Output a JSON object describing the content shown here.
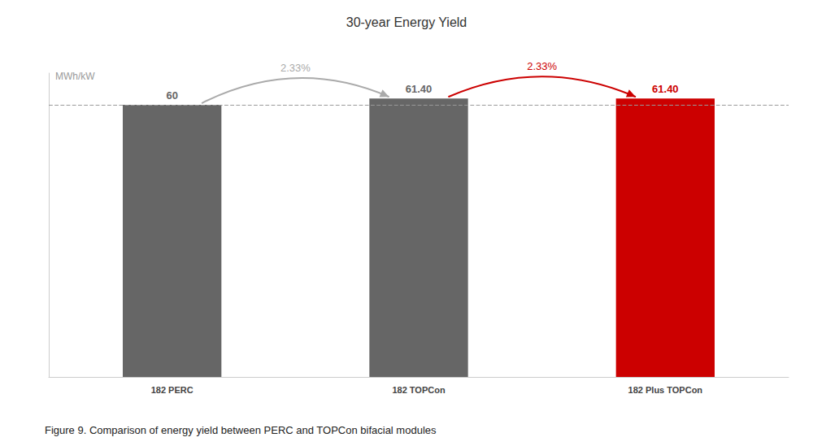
{
  "chart_data": {
    "type": "bar",
    "title": "30-year Energy Yield",
    "caption": "Figure 9. Comparison of energy yield between PERC and TOPCon bifacial modules",
    "categories": [
      "182 PERC",
      "182 TOPCon",
      "182 Plus TOPCon"
    ],
    "values": [
      60,
      61.4,
      61.4
    ],
    "value_labels": [
      "60",
      "61.40",
      "61.40"
    ],
    "colors": [
      "#666666",
      "#666666",
      "#cc0000"
    ],
    "data_labels": true,
    "ylabel": "MWh/kW",
    "ylim": [
      0,
      67
    ],
    "tick_labels": "x",
    "grid": false,
    "reference_line": {
      "value": 60,
      "color": "#999999",
      "line_style": "dashed"
    },
    "annotations": [
      {
        "text": "2.33%",
        "color": "#aaaaaa",
        "from": "182 PERC",
        "to": "182 TOPCon"
      },
      {
        "text": "2.33%",
        "color": "#cc0000",
        "from": "182 TOPCon",
        "to": "182 Plus TOPCon"
      }
    ]
  }
}
